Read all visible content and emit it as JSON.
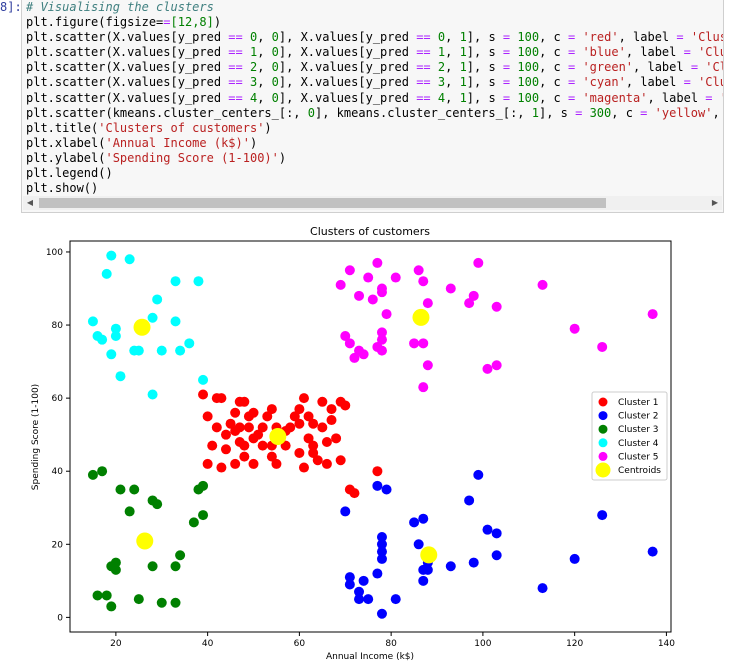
{
  "cell": {
    "prompt": "8]:",
    "lines": [
      [
        [
          "cm",
          "# Visualising the clusters"
        ]
      ],
      [
        [
          "kw",
          "plt.figure(figsize="
        ],
        [
          "op",
          "="
        ],
        [
          "nm",
          "[12,8]"
        ],
        [
          "kw",
          ")"
        ]
      ],
      [
        [
          "kw",
          "plt.scatter(X.values[y_pred "
        ],
        [
          "op",
          "=="
        ],
        [
          "kw",
          " "
        ],
        [
          "nm",
          "0"
        ],
        [
          "kw",
          ", "
        ],
        [
          "nm",
          "0"
        ],
        [
          "kw",
          "], X.values[y_pred "
        ],
        [
          "op",
          "=="
        ],
        [
          "kw",
          " "
        ],
        [
          "nm",
          "0"
        ],
        [
          "kw",
          ", "
        ],
        [
          "nm",
          "1"
        ],
        [
          "kw",
          "], s "
        ],
        [
          "op",
          "="
        ],
        [
          "kw",
          " "
        ],
        [
          "nm",
          "100"
        ],
        [
          "kw",
          ", c "
        ],
        [
          "op",
          "="
        ],
        [
          "kw",
          " "
        ],
        [
          "st",
          "'red'"
        ],
        [
          "kw",
          ", label "
        ],
        [
          "op",
          "="
        ],
        [
          "kw",
          " "
        ],
        [
          "st",
          "'Cluste"
        ]
      ],
      [
        [
          "kw",
          "plt.scatter(X.values[y_pred "
        ],
        [
          "op",
          "=="
        ],
        [
          "kw",
          " "
        ],
        [
          "nm",
          "1"
        ],
        [
          "kw",
          ", "
        ],
        [
          "nm",
          "0"
        ],
        [
          "kw",
          "], X.values[y_pred "
        ],
        [
          "op",
          "=="
        ],
        [
          "kw",
          " "
        ],
        [
          "nm",
          "1"
        ],
        [
          "kw",
          ", "
        ],
        [
          "nm",
          "1"
        ],
        [
          "kw",
          "], s "
        ],
        [
          "op",
          "="
        ],
        [
          "kw",
          " "
        ],
        [
          "nm",
          "100"
        ],
        [
          "kw",
          ", c "
        ],
        [
          "op",
          "="
        ],
        [
          "kw",
          " "
        ],
        [
          "st",
          "'blue'"
        ],
        [
          "kw",
          ", label "
        ],
        [
          "op",
          "="
        ],
        [
          "kw",
          " "
        ],
        [
          "st",
          "'Clust"
        ]
      ],
      [
        [
          "kw",
          "plt.scatter(X.values[y_pred "
        ],
        [
          "op",
          "=="
        ],
        [
          "kw",
          " "
        ],
        [
          "nm",
          "2"
        ],
        [
          "kw",
          ", "
        ],
        [
          "nm",
          "0"
        ],
        [
          "kw",
          "], X.values[y_pred "
        ],
        [
          "op",
          "=="
        ],
        [
          "kw",
          " "
        ],
        [
          "nm",
          "2"
        ],
        [
          "kw",
          ", "
        ],
        [
          "nm",
          "1"
        ],
        [
          "kw",
          "], s "
        ],
        [
          "op",
          "="
        ],
        [
          "kw",
          " "
        ],
        [
          "nm",
          "100"
        ],
        [
          "kw",
          ", c "
        ],
        [
          "op",
          "="
        ],
        [
          "kw",
          " "
        ],
        [
          "st",
          "'green'"
        ],
        [
          "kw",
          ", label "
        ],
        [
          "op",
          "="
        ],
        [
          "kw",
          " "
        ],
        [
          "st",
          "'Clus"
        ]
      ],
      [
        [
          "kw",
          "plt.scatter(X.values[y_pred "
        ],
        [
          "op",
          "=="
        ],
        [
          "kw",
          " "
        ],
        [
          "nm",
          "3"
        ],
        [
          "kw",
          ", "
        ],
        [
          "nm",
          "0"
        ],
        [
          "kw",
          "], X.values[y_pred "
        ],
        [
          "op",
          "=="
        ],
        [
          "kw",
          " "
        ],
        [
          "nm",
          "3"
        ],
        [
          "kw",
          ", "
        ],
        [
          "nm",
          "1"
        ],
        [
          "kw",
          "], s "
        ],
        [
          "op",
          "="
        ],
        [
          "kw",
          " "
        ],
        [
          "nm",
          "100"
        ],
        [
          "kw",
          ", c "
        ],
        [
          "op",
          "="
        ],
        [
          "kw",
          " "
        ],
        [
          "st",
          "'cyan'"
        ],
        [
          "kw",
          ", label "
        ],
        [
          "op",
          "="
        ],
        [
          "kw",
          " "
        ],
        [
          "st",
          "'Clust"
        ]
      ],
      [
        [
          "kw",
          "plt.scatter(X.values[y_pred "
        ],
        [
          "op",
          "=="
        ],
        [
          "kw",
          " "
        ],
        [
          "nm",
          "4"
        ],
        [
          "kw",
          ", "
        ],
        [
          "nm",
          "0"
        ],
        [
          "kw",
          "], X.values[y_pred "
        ],
        [
          "op",
          "=="
        ],
        [
          "kw",
          " "
        ],
        [
          "nm",
          "4"
        ],
        [
          "kw",
          ", "
        ],
        [
          "nm",
          "1"
        ],
        [
          "kw",
          "], s "
        ],
        [
          "op",
          "="
        ],
        [
          "kw",
          " "
        ],
        [
          "nm",
          "100"
        ],
        [
          "kw",
          ", c "
        ],
        [
          "op",
          "="
        ],
        [
          "kw",
          " "
        ],
        [
          "st",
          "'magenta'"
        ],
        [
          "kw",
          ", label "
        ],
        [
          "op",
          "="
        ],
        [
          "kw",
          " "
        ],
        [
          "st",
          "'Cl"
        ]
      ],
      [
        [
          "kw",
          "plt.scatter(kmeans.cluster_centers_[:, "
        ],
        [
          "nm",
          "0"
        ],
        [
          "kw",
          "], kmeans.cluster_centers_[:, "
        ],
        [
          "nm",
          "1"
        ],
        [
          "kw",
          "], s "
        ],
        [
          "op",
          "="
        ],
        [
          "kw",
          " "
        ],
        [
          "nm",
          "300"
        ],
        [
          "kw",
          ", c "
        ],
        [
          "op",
          "="
        ],
        [
          "kw",
          " "
        ],
        [
          "st",
          "'yellow'"
        ],
        [
          "kw",
          ", lal"
        ]
      ],
      [
        [
          "kw",
          "plt.title("
        ],
        [
          "st",
          "'Clusters of customers'"
        ],
        [
          "kw",
          ")"
        ]
      ],
      [
        [
          "kw",
          "plt.xlabel("
        ],
        [
          "st",
          "'Annual Income (k$)'"
        ],
        [
          "kw",
          ")"
        ]
      ],
      [
        [
          "kw",
          "plt.ylabel("
        ],
        [
          "st",
          "'Spending Score (1-100)'"
        ],
        [
          "kw",
          ")"
        ]
      ],
      [
        [
          "kw",
          "plt.legend()"
        ]
      ],
      [
        [
          "kw",
          "plt.show()"
        ]
      ]
    ],
    "scroll_left_icon": "◀",
    "scroll_right_icon": "▶"
  },
  "chart_data": {
    "type": "scatter",
    "title": "Clusters of customers",
    "xlabel": "Annual Income (k$)",
    "ylabel": "Spending Score (1-100)",
    "xlim": [
      10,
      141
    ],
    "ylim": [
      -4,
      103
    ],
    "xticks": [
      20,
      40,
      60,
      80,
      100,
      120,
      140
    ],
    "yticks": [
      0,
      20,
      40,
      60,
      80,
      100
    ],
    "grid": false,
    "legend_position": "right",
    "series": [
      {
        "name": "Cluster 1",
        "color": "#ff0000",
        "points": [
          [
            39,
            61
          ],
          [
            40,
            42
          ],
          [
            40,
            55
          ],
          [
            41,
            47
          ],
          [
            42,
            60
          ],
          [
            42,
            52
          ],
          [
            43,
            60
          ],
          [
            43,
            41
          ],
          [
            44,
            50
          ],
          [
            44,
            46
          ],
          [
            45,
            53
          ],
          [
            46,
            42
          ],
          [
            46,
            51
          ],
          [
            46,
            56
          ],
          [
            47,
            48
          ],
          [
            47,
            59
          ],
          [
            47,
            52
          ],
          [
            48,
            59
          ],
          [
            48,
            44
          ],
          [
            48,
            47
          ],
          [
            49,
            52
          ],
          [
            49,
            55
          ],
          [
            50,
            49
          ],
          [
            50,
            42
          ],
          [
            50,
            56
          ],
          [
            51,
            50
          ],
          [
            52,
            47
          ],
          [
            52,
            52
          ],
          [
            53,
            55
          ],
          [
            54,
            47
          ],
          [
            54,
            57
          ],
          [
            54,
            44
          ],
          [
            55,
            42
          ],
          [
            55,
            52
          ],
          [
            57,
            51
          ],
          [
            57,
            47
          ],
          [
            58,
            52
          ],
          [
            59,
            55
          ],
          [
            60,
            57
          ],
          [
            60,
            45
          ],
          [
            60,
            53
          ],
          [
            61,
            41
          ],
          [
            61,
            60
          ],
          [
            62,
            49
          ],
          [
            62,
            55
          ],
          [
            63,
            47
          ],
          [
            63,
            53
          ],
          [
            63,
            45
          ],
          [
            64,
            43
          ],
          [
            65,
            52
          ],
          [
            65,
            59
          ],
          [
            66,
            42
          ],
          [
            66,
            48
          ],
          [
            67,
            54
          ],
          [
            67,
            57
          ],
          [
            68,
            49
          ],
          [
            69,
            59
          ],
          [
            69,
            43
          ],
          [
            70,
            58
          ],
          [
            71,
            35
          ],
          [
            72,
            34
          ],
          [
            77,
            40
          ]
        ]
      },
      {
        "name": "Cluster 2",
        "color": "#0000ff",
        "points": [
          [
            70,
            29
          ],
          [
            71,
            11
          ],
          [
            71,
            9
          ],
          [
            73,
            5
          ],
          [
            73,
            7
          ],
          [
            74,
            10
          ],
          [
            75,
            5
          ],
          [
            77,
            12
          ],
          [
            78,
            20
          ],
          [
            78,
            22
          ],
          [
            78,
            16
          ],
          [
            78,
            18
          ],
          [
            77,
            36
          ],
          [
            78,
            1
          ],
          [
            79,
            35
          ],
          [
            81,
            5
          ],
          [
            85,
            26
          ],
          [
            86,
            20
          ],
          [
            87,
            27
          ],
          [
            87,
            10
          ],
          [
            87,
            13
          ],
          [
            88,
            15
          ],
          [
            88,
            13
          ],
          [
            93,
            14
          ],
          [
            97,
            32
          ],
          [
            98,
            15
          ],
          [
            99,
            39
          ],
          [
            101,
            24
          ],
          [
            103,
            17
          ],
          [
            103,
            23
          ],
          [
            113,
            8
          ],
          [
            120,
            16
          ],
          [
            126,
            28
          ],
          [
            137,
            18
          ]
        ]
      },
      {
        "name": "Cluster 3",
        "color": "#008000",
        "points": [
          [
            15,
            39
          ],
          [
            16,
            6
          ],
          [
            17,
            40
          ],
          [
            18,
            6
          ],
          [
            19,
            3
          ],
          [
            19,
            14
          ],
          [
            20,
            15
          ],
          [
            20,
            13
          ],
          [
            21,
            35
          ],
          [
            23,
            29
          ],
          [
            24,
            35
          ],
          [
            25,
            5
          ],
          [
            28,
            14
          ],
          [
            28,
            32
          ],
          [
            29,
            31
          ],
          [
            30,
            4
          ],
          [
            33,
            4
          ],
          [
            33,
            14
          ],
          [
            34,
            17
          ],
          [
            37,
            26
          ],
          [
            38,
            35
          ],
          [
            39,
            36
          ],
          [
            39,
            28
          ]
        ]
      },
      {
        "name": "Cluster 4",
        "color": "#00ffff",
        "points": [
          [
            15,
            81
          ],
          [
            16,
            77
          ],
          [
            17,
            76
          ],
          [
            18,
            94
          ],
          [
            19,
            99
          ],
          [
            19,
            72
          ],
          [
            20,
            77
          ],
          [
            20,
            79
          ],
          [
            21,
            66
          ],
          [
            23,
            98
          ],
          [
            24,
            73
          ],
          [
            25,
            73
          ],
          [
            28,
            82
          ],
          [
            28,
            61
          ],
          [
            29,
            87
          ],
          [
            30,
            73
          ],
          [
            33,
            92
          ],
          [
            33,
            81
          ],
          [
            34,
            73
          ],
          [
            36,
            75
          ],
          [
            38,
            92
          ],
          [
            39,
            65
          ]
        ]
      },
      {
        "name": "Cluster 5",
        "color": "#ff00ff",
        "points": [
          [
            69,
            91
          ],
          [
            70,
            77
          ],
          [
            71,
            95
          ],
          [
            71,
            75
          ],
          [
            72,
            71
          ],
          [
            73,
            88
          ],
          [
            73,
            73
          ],
          [
            74,
            72
          ],
          [
            75,
            93
          ],
          [
            76,
            87
          ],
          [
            77,
            97
          ],
          [
            77,
            74
          ],
          [
            78,
            90
          ],
          [
            78,
            76
          ],
          [
            78,
            89
          ],
          [
            78,
            78
          ],
          [
            78,
            73
          ],
          [
            79,
            83
          ],
          [
            81,
            93
          ],
          [
            85,
            75
          ],
          [
            86,
            95
          ],
          [
            87,
            63
          ],
          [
            87,
            75
          ],
          [
            87,
            92
          ],
          [
            88,
            86
          ],
          [
            88,
            69
          ],
          [
            93,
            90
          ],
          [
            97,
            86
          ],
          [
            98,
            88
          ],
          [
            99,
            97
          ],
          [
            101,
            68
          ],
          [
            103,
            85
          ],
          [
            103,
            69
          ],
          [
            113,
            91
          ],
          [
            120,
            79
          ],
          [
            126,
            74
          ],
          [
            137,
            83
          ]
        ]
      },
      {
        "name": "Centroids",
        "color": "#ffff00",
        "points": [
          [
            55.3,
            49.5
          ],
          [
            86.5,
            82.1
          ],
          [
            25.7,
            79.4
          ],
          [
            88.2,
            17.1
          ],
          [
            26.3,
            20.9
          ]
        ]
      }
    ]
  }
}
